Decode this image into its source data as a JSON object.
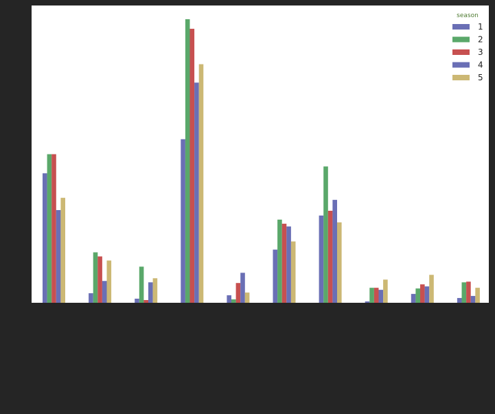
{
  "chart_data": {
    "type": "bar",
    "title": "",
    "xlabel": "",
    "ylabel": "",
    "categories": [
      "",
      "",
      "",
      "",
      "",
      "",
      "",
      "",
      "",
      ""
    ],
    "ylim": [
      0,
      420
    ],
    "grid": false,
    "legend": {
      "title": "season",
      "placement": "top-right"
    },
    "series": [
      {
        "name": "1",
        "color": "#6a6fb5",
        "values": [
          190,
          14,
          6,
          240,
          11,
          78,
          128,
          2,
          13,
          7
        ]
      },
      {
        "name": "2",
        "color": "#5aa86a",
        "values": [
          218,
          74,
          53,
          416,
          5,
          122,
          200,
          22,
          21,
          30
        ]
      },
      {
        "name": "3",
        "color": "#c75050",
        "values": [
          218,
          68,
          4,
          402,
          29,
          116,
          135,
          22,
          27,
          31
        ]
      },
      {
        "name": "4",
        "color": "#6a6fb5",
        "values": [
          136,
          32,
          30,
          323,
          44,
          112,
          151,
          19,
          24,
          10
        ]
      },
      {
        "name": "5",
        "color": "#ccb874",
        "values": [
          154,
          62,
          36,
          350,
          15,
          90,
          118,
          34,
          41,
          22
        ]
      }
    ]
  }
}
